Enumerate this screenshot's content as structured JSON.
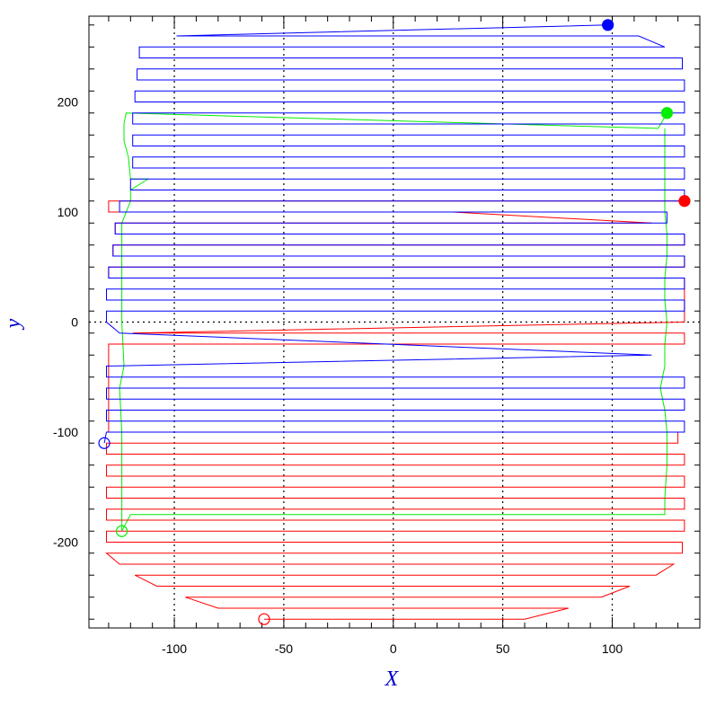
{
  "chart_data": {
    "type": "line",
    "title": "",
    "xlabel": "X",
    "ylabel": "y",
    "xlim": [
      -139,
      140
    ],
    "ylim": [
      -278,
      278
    ],
    "x_ticks": [
      -100,
      -50,
      0,
      50,
      100
    ],
    "x_tick_labels": [
      "-100",
      "-50",
      "0",
      "50",
      "100"
    ],
    "y_ticks": [
      -200,
      -100,
      0,
      100,
      200
    ],
    "y_tick_labels": [
      "-200",
      "-100",
      "0",
      "100",
      "200"
    ],
    "grid": "dotted lines at x = -100, -50, 0, 50, 100 and y = 0",
    "legend": "none",
    "colors": {
      "blue": "#0000ff",
      "green": "#00ee00",
      "red": "#ff0000",
      "axis_title": "#0000cc",
      "axes": "#000000"
    },
    "series": [
      {
        "color": "blue",
        "start_marker": {
          "x": 98,
          "y": 270,
          "style": "filled"
        },
        "end_marker": {
          "x": -132,
          "y": -110,
          "style": "open"
        },
        "path": [
          [
            98,
            270
          ],
          [
            -99,
            260
          ],
          [
            112,
            260
          ],
          [
            124,
            250
          ],
          [
            -116,
            250
          ],
          [
            -116,
            240
          ],
          [
            132,
            240
          ],
          [
            132,
            230
          ],
          [
            -117,
            230
          ],
          [
            -117,
            220
          ],
          [
            133,
            220
          ],
          [
            133,
            210
          ],
          [
            -118,
            210
          ],
          [
            -118,
            200
          ],
          [
            133,
            200
          ],
          [
            133,
            190
          ],
          [
            -119,
            190
          ],
          [
            -119,
            180
          ],
          [
            133,
            180
          ],
          [
            133,
            170
          ],
          [
            -119,
            170
          ],
          [
            -119,
            160
          ],
          [
            133,
            160
          ],
          [
            133,
            150
          ],
          [
            -119,
            150
          ],
          [
            -119,
            140
          ],
          [
            133,
            140
          ],
          [
            133,
            130
          ],
          [
            -120,
            130
          ],
          [
            -120,
            120
          ],
          [
            133,
            120
          ],
          [
            133,
            110
          ],
          [
            -125,
            110
          ],
          [
            -125,
            100
          ],
          [
            125,
            100
          ],
          [
            125,
            90
          ],
          [
            -127,
            90
          ],
          [
            -127,
            80
          ],
          [
            133,
            80
          ],
          [
            133,
            70
          ],
          [
            -128,
            70
          ],
          [
            -128,
            60
          ],
          [
            133,
            60
          ],
          [
            133,
            50
          ],
          [
            -130,
            50
          ],
          [
            -130,
            40
          ],
          [
            133,
            40
          ],
          [
            133,
            30
          ],
          [
            -131,
            30
          ],
          [
            -131,
            20
          ],
          [
            133,
            20
          ],
          [
            133,
            10
          ],
          [
            -131,
            10
          ],
          [
            -131,
            0
          ],
          [
            -125,
            -10
          ],
          [
            118,
            -30
          ],
          [
            -131,
            -40
          ],
          [
            -131,
            -50
          ],
          [
            133,
            -50
          ],
          [
            133,
            -60
          ],
          [
            -131,
            -60
          ],
          [
            -131,
            -70
          ],
          [
            133,
            -70
          ],
          [
            133,
            -80
          ],
          [
            -131,
            -80
          ],
          [
            -131,
            -90
          ],
          [
            133,
            -90
          ],
          [
            133,
            -100
          ],
          [
            -131,
            -100
          ],
          [
            -132,
            -110
          ]
        ]
      },
      {
        "color": "green",
        "start_marker": {
          "x": 125,
          "y": 190,
          "style": "filled"
        },
        "end_marker": {
          "x": -124,
          "y": -190,
          "style": "open"
        },
        "path": [
          [
            125,
            190
          ],
          [
            121,
            176
          ],
          [
            -122,
            190
          ],
          [
            -123,
            180
          ],
          [
            -123,
            165
          ],
          [
            -121,
            150
          ],
          [
            -120,
            130
          ],
          [
            -112,
            130
          ],
          [
            -120,
            120
          ],
          [
            -120,
            110
          ],
          [
            -124,
            90
          ],
          [
            -124,
            60
          ],
          [
            -124,
            30
          ],
          [
            -124,
            0
          ],
          [
            -123,
            -40
          ],
          [
            -125,
            -60
          ],
          [
            -124,
            -100
          ],
          [
            -124,
            -140
          ],
          [
            -124,
            -170
          ],
          [
            -124,
            -190
          ],
          [
            -120,
            -175
          ],
          [
            124,
            -175
          ],
          [
            124,
            -160
          ],
          [
            125,
            -130
          ],
          [
            125,
            -100
          ],
          [
            124,
            -80
          ],
          [
            122,
            -60
          ],
          [
            124,
            -40
          ],
          [
            124,
            -20
          ],
          [
            125,
            0
          ],
          [
            124,
            20
          ],
          [
            124,
            40
          ],
          [
            125,
            60
          ],
          [
            125,
            80
          ],
          [
            124,
            100
          ],
          [
            124,
            120
          ],
          [
            124,
            140
          ],
          [
            124,
            176
          ]
        ]
      },
      {
        "color": "red",
        "start_marker": {
          "x": 133,
          "y": 110,
          "style": "filled"
        },
        "end_marker": {
          "x": -59,
          "y": -270,
          "style": "open"
        },
        "path": [
          [
            133,
            110
          ],
          [
            -130,
            110
          ],
          [
            -130,
            100
          ],
          [
            27,
            100
          ],
          [
            118,
            90
          ],
          [
            -127,
            90
          ],
          [
            -127,
            80
          ],
          [
            133,
            80
          ],
          [
            133,
            70
          ],
          [
            -128,
            70
          ],
          [
            -128,
            60
          ],
          [
            133,
            60
          ],
          [
            133,
            50
          ],
          [
            -130,
            50
          ],
          [
            -130,
            40
          ],
          [
            133,
            40
          ],
          [
            133,
            0
          ],
          [
            -119,
            -10
          ],
          [
            133,
            -10
          ],
          [
            133,
            -20
          ],
          [
            -130,
            -20
          ],
          [
            -130,
            -100
          ],
          [
            130,
            -100
          ],
          [
            130,
            -110
          ],
          [
            -131,
            -110
          ],
          [
            -131,
            -120
          ],
          [
            133,
            -120
          ],
          [
            133,
            -130
          ],
          [
            -131,
            -130
          ],
          [
            -131,
            -140
          ],
          [
            133,
            -140
          ],
          [
            133,
            -150
          ],
          [
            -131,
            -150
          ],
          [
            -131,
            -160
          ],
          [
            133,
            -160
          ],
          [
            133,
            -170
          ],
          [
            -131,
            -170
          ],
          [
            -131,
            -180
          ],
          [
            133,
            -180
          ],
          [
            133,
            -190
          ],
          [
            -131,
            -190
          ],
          [
            -131,
            -200
          ],
          [
            132,
            -200
          ],
          [
            132,
            -210
          ],
          [
            -131,
            -210
          ],
          [
            -125,
            -220
          ],
          [
            128,
            -220
          ],
          [
            120,
            -230
          ],
          [
            -118,
            -230
          ],
          [
            -108,
            -240
          ],
          [
            108,
            -240
          ],
          [
            95,
            -250
          ],
          [
            -95,
            -250
          ],
          [
            -80,
            -260
          ],
          [
            80,
            -260
          ],
          [
            60,
            -270
          ],
          [
            -59,
            -270
          ]
        ]
      }
    ]
  }
}
